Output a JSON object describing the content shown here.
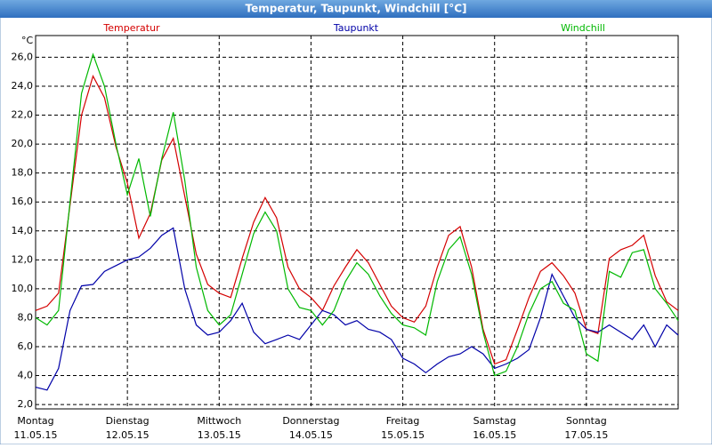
{
  "chart_data": {
    "type": "line",
    "title": "Temperatur, Taupunkt, Windchill [°C]",
    "y_label": "°C",
    "x": [
      0,
      0.125,
      0.25,
      0.375,
      0.5,
      0.625,
      0.75,
      0.875,
      1,
      1.125,
      1.25,
      1.375,
      1.5,
      1.625,
      1.75,
      1.875,
      2,
      2.125,
      2.25,
      2.375,
      2.5,
      2.625,
      2.75,
      2.875,
      3,
      3.125,
      3.25,
      3.375,
      3.5,
      3.625,
      3.75,
      3.875,
      4,
      4.125,
      4.25,
      4.375,
      4.5,
      4.625,
      4.75,
      4.875,
      5,
      5.125,
      5.25,
      5.375,
      5.5,
      5.625,
      5.75,
      5.875,
      6,
      6.125,
      6.25,
      6.375,
      6.5,
      6.625,
      6.75,
      6.875,
      7
    ],
    "series": [
      {
        "name": "Temperatur",
        "color": "#d40000",
        "values": [
          8.5,
          8.8,
          9.7,
          15.8,
          22,
          24.7,
          23.2,
          19.8,
          17.3,
          13.5,
          15.2,
          18.9,
          20.4,
          16.4,
          12.4,
          10.3,
          9.7,
          9.4,
          12.1,
          14.6,
          16.3,
          14.9,
          11.5,
          10,
          9.4,
          8.5,
          10.2,
          11.5,
          12.7,
          11.8,
          10.3,
          8.8,
          8,
          7.7,
          8.8,
          11.5,
          13.7,
          14.3,
          11.5,
          7.2,
          4.8,
          5.1,
          7.2,
          9.4,
          11.2,
          11.8,
          10.9,
          9.7,
          7.2,
          6.9,
          12.1,
          12.7,
          13,
          13.7,
          10.9,
          9.1,
          8.5
        ]
      },
      {
        "name": "Taupunkt",
        "color": "#0000a8",
        "values": [
          3.2,
          3,
          4.5,
          8.5,
          10.2,
          10.3,
          11.2,
          11.6,
          12,
          12.2,
          12.8,
          13.7,
          14.2,
          10,
          7.5,
          6.8,
          7,
          7.8,
          9,
          7,
          6.2,
          6.5,
          6.8,
          6.5,
          7.5,
          8.5,
          8.2,
          7.5,
          7.8,
          7.2,
          7,
          6.5,
          5.2,
          4.8,
          4.2,
          4.8,
          5.3,
          5.5,
          6,
          5.5,
          4.5,
          4.8,
          5.2,
          5.8,
          8,
          11,
          9.5,
          8,
          7.2,
          7,
          7.5,
          7,
          6.5,
          7.5,
          6,
          7.5,
          6.8
        ]
      },
      {
        "name": "Windchill",
        "color": "#00b800",
        "values": [
          8,
          7.5,
          8.5,
          16,
          23.5,
          26.2,
          24,
          20,
          16.5,
          19,
          15,
          19,
          22.2,
          17.5,
          11.5,
          8.5,
          7.5,
          8.2,
          11,
          13.8,
          15.3,
          14,
          10,
          8.7,
          8.5,
          7.5,
          8.5,
          10.5,
          11.8,
          11,
          9.5,
          8.3,
          7.5,
          7.3,
          6.8,
          10.5,
          12.7,
          13.6,
          11,
          7,
          4,
          4.3,
          6,
          8.3,
          10,
          10.5,
          9,
          8.5,
          5.5,
          5,
          11.2,
          10.8,
          12.5,
          12.7,
          10,
          9,
          7.8
        ]
      }
    ],
    "xlim": [
      0,
      7
    ],
    "xticks": [
      {
        "value": 0,
        "label": "Montag"
      },
      {
        "value": 1,
        "label": "Dienstag"
      },
      {
        "value": 2,
        "label": "Mittwoch"
      },
      {
        "value": 3,
        "label": "Donnerstag"
      },
      {
        "value": 4,
        "label": "Freitag"
      },
      {
        "value": 5,
        "label": "Samstag"
      },
      {
        "value": 6,
        "label": "Sonntag"
      },
      {
        "value": 7,
        "label": ""
      }
    ],
    "xtick_dates": [
      "11.05.15",
      "12.05.15",
      "13.05.15",
      "14.05.15",
      "15.05.15",
      "16.05.15",
      "17.05.15"
    ],
    "ylim": [
      1.7,
      27.5
    ],
    "yticks": [
      {
        "value": 2,
        "label": "2,0"
      },
      {
        "value": 4,
        "label": "4,0"
      },
      {
        "value": 6,
        "label": "6,0"
      },
      {
        "value": 8,
        "label": "8,0"
      },
      {
        "value": 10,
        "label": "10,0"
      },
      {
        "value": 12,
        "label": "12,0"
      },
      {
        "value": 14,
        "label": "14,0"
      },
      {
        "value": 16,
        "label": "16,0"
      },
      {
        "value": 18,
        "label": "18,0"
      },
      {
        "value": 20,
        "label": "20,0"
      },
      {
        "value": 22,
        "label": "22,0"
      },
      {
        "value": 24,
        "label": "24,0"
      },
      {
        "value": 26,
        "label": "26,0"
      }
    ],
    "grid": true
  }
}
